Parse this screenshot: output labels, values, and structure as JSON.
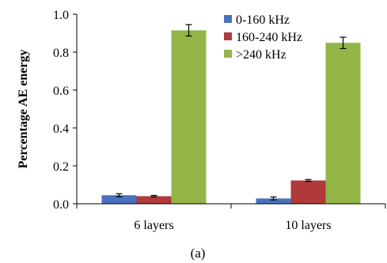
{
  "chart_data": {
    "type": "bar",
    "title": "",
    "xlabel": "",
    "ylabel": "Percentage AE energy",
    "ylim": [
      0,
      1.0
    ],
    "yticks": [
      "0.0",
      "0.2",
      "0.4",
      "0.6",
      "0.8",
      "1.0"
    ],
    "categories": [
      "6 layers",
      "10 layers"
    ],
    "series": [
      {
        "name": "0-160 kHz",
        "color": "#4a70c0",
        "values": [
          0.045,
          0.028
        ],
        "errors": [
          0.008,
          0.008
        ]
      },
      {
        "name": "160-240 kHz",
        "color": "#b03a3a",
        "values": [
          0.04,
          0.123
        ],
        "errors": [
          0.004,
          0.005
        ]
      },
      {
        "name": ">240 kHz",
        "color": "#93b548",
        "values": [
          0.915,
          0.849
        ],
        "errors": [
          0.03,
          0.03
        ]
      }
    ],
    "legend_position": "top-right",
    "grid": false,
    "caption": "(a)"
  }
}
